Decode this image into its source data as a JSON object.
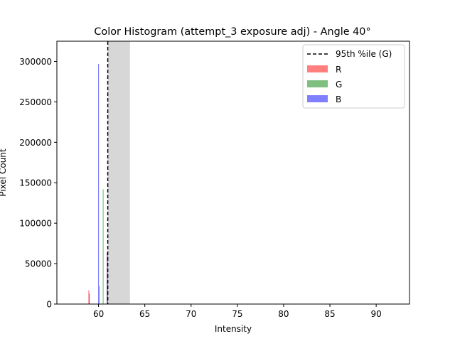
{
  "chart_data": {
    "type": "bar",
    "title": "Color Histogram (attempt_3 exposure adj) - Angle 40°",
    "xlabel": "Intensity",
    "ylabel": "Pixel Count",
    "xlim": [
      55.5,
      93.6
    ],
    "ylim": [
      0,
      325000
    ],
    "xticks": [
      60,
      65,
      70,
      75,
      80,
      85,
      90
    ],
    "yticks": [
      0,
      50000,
      100000,
      150000,
      200000,
      250000,
      300000
    ],
    "grid": false,
    "legend_position": "top-right",
    "series": [
      {
        "name": "R",
        "color": "#ff0000",
        "bars": [
          {
            "x": 58.95,
            "value": 17000
          },
          {
            "x": 60.95,
            "value": 64000
          }
        ]
      },
      {
        "name": "G",
        "color": "#008000",
        "bars": [
          {
            "x": 60.1,
            "value": 22000
          },
          {
            "x": 60.5,
            "value": 142000
          },
          {
            "x": 60.95,
            "value": 28000
          }
        ]
      },
      {
        "name": "B",
        "color": "#0000ff",
        "bars": [
          {
            "x": 59.0,
            "value": 13000
          },
          {
            "x": 60.0,
            "value": 297000
          },
          {
            "x": 60.95,
            "value": 64000
          }
        ]
      }
    ],
    "percentile_line": {
      "label": "95th %ile (G)",
      "x": 61.0,
      "color": "#000000"
    },
    "shaded_band": {
      "x_start": 61.0,
      "x_end": 63.4,
      "color": "#d3d3d3"
    }
  }
}
